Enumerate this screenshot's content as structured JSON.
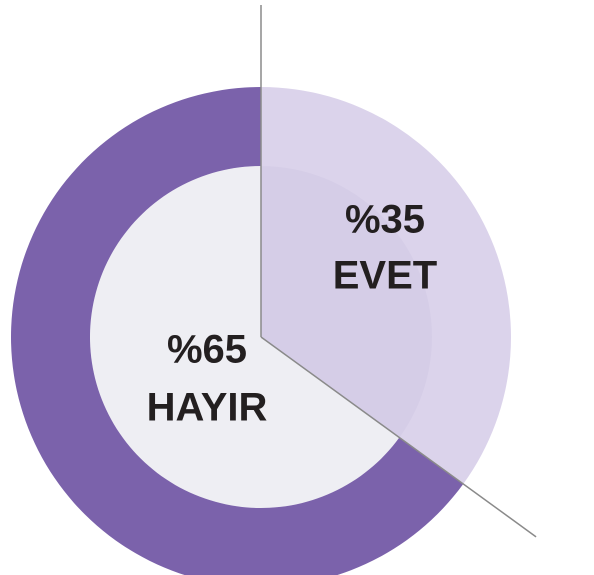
{
  "chart_data": {
    "type": "pie",
    "categories": [
      "EVET",
      "HAYIR"
    ],
    "values": [
      35,
      65
    ],
    "value_labels": [
      "%35",
      "%65"
    ],
    "colors": [
      "#c8bbe0",
      "#7b62ab"
    ]
  }
}
